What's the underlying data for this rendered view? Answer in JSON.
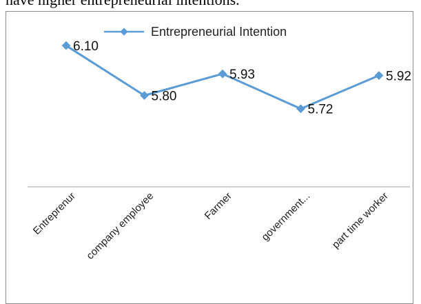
{
  "page": {
    "header_text": "have higher entrepreneurial intentions."
  },
  "chart_data": {
    "type": "line",
    "categories": [
      "Entreprenur",
      "company employee",
      "Farmer",
      "government...",
      "part time worker"
    ],
    "series": [
      {
        "name": "Entrepreneurial Intention",
        "values": [
          6.1,
          5.8,
          5.93,
          5.72,
          5.92
        ],
        "labels": [
          "6.10",
          "5.80",
          "5.93",
          "5.72",
          "5.92"
        ],
        "color": "#5b9bd5"
      }
    ],
    "title": "",
    "xlabel": "",
    "ylabel": "",
    "ylim": [
      5.25,
      6.25
    ],
    "grid": false,
    "y_axis_visible": false,
    "legend_position": "top-center",
    "axis_color": "#bfbfbf"
  }
}
